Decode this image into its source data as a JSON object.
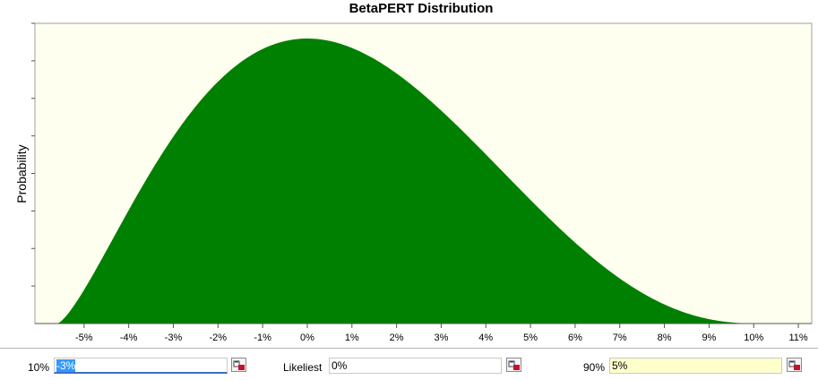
{
  "chart_data": {
    "type": "area",
    "title": "BetaPERT Distribution",
    "ylabel": "Probability",
    "xlabel": "",
    "x_tick_labels": [
      "-5%",
      "-4%",
      "-3%",
      "-2%",
      "-1%",
      "0%",
      "1%",
      "2%",
      "3%",
      "4%",
      "5%",
      "6%",
      "7%",
      "8%",
      "9%",
      "10%",
      "11%"
    ],
    "x_ticks": [
      -5,
      -4,
      -3,
      -2,
      -1,
      0,
      1,
      2,
      3,
      4,
      5,
      6,
      7,
      8,
      9,
      10,
      11
    ],
    "xlim": [
      -6.1,
      11.3
    ],
    "distribution": {
      "min_pct": -5.6,
      "mode_pct": 0,
      "max_pct": 10.2
    },
    "fill_color": "#008000",
    "plot_background": "#fffff0",
    "grid": false
  },
  "controls": {
    "p10": {
      "label": "10%",
      "value": "-3%"
    },
    "likeliest": {
      "label": "Likeliest",
      "value": "0%"
    },
    "p90": {
      "label": "90%",
      "value": "5%"
    }
  },
  "icons": {
    "picker": "cell-reference-picker-icon"
  }
}
